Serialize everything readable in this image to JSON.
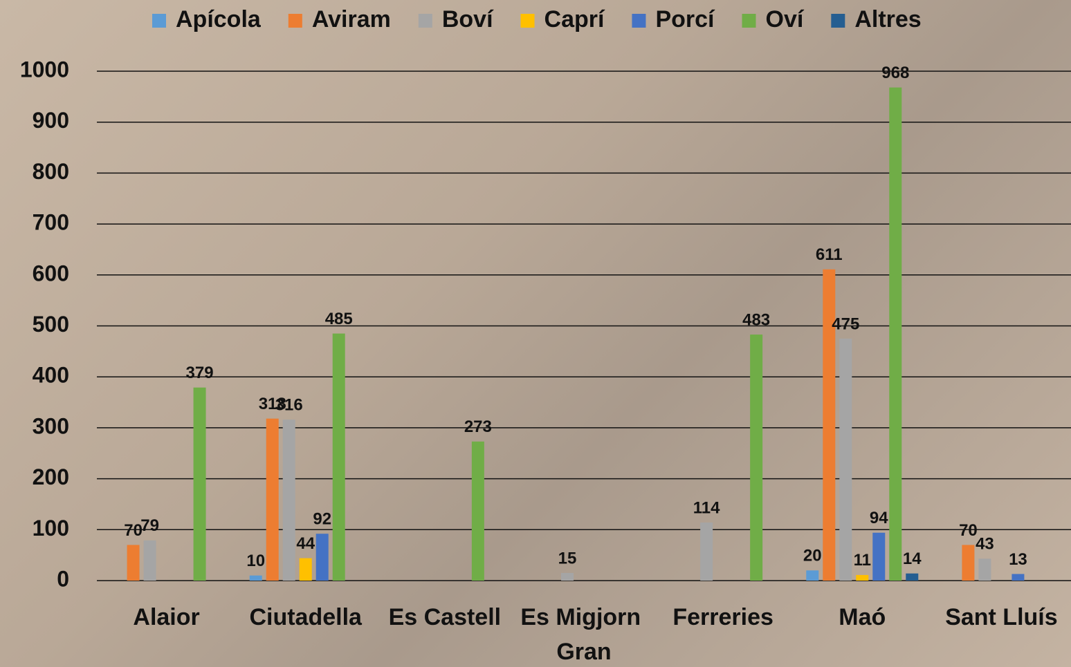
{
  "chart_data": {
    "type": "bar",
    "categories": [
      "Alaior",
      "Ciutadella",
      "Es Castell",
      "Es Migjorn Gran",
      "Ferreries",
      "Maó",
      "Sant Lluís"
    ],
    "series": [
      {
        "name": "Apícola",
        "color": "#5b9bd5",
        "values": [
          null,
          10,
          null,
          null,
          null,
          20,
          null
        ]
      },
      {
        "name": "Aviram",
        "color": "#ed7d31",
        "values": [
          70,
          318,
          null,
          null,
          null,
          611,
          70
        ]
      },
      {
        "name": "Boví",
        "color": "#a5a5a5",
        "values": [
          79,
          316,
          null,
          15,
          114,
          475,
          43
        ]
      },
      {
        "name": "Caprí",
        "color": "#ffc000",
        "values": [
          null,
          44,
          null,
          null,
          null,
          11,
          null
        ]
      },
      {
        "name": "Porcí",
        "color": "#4472c4",
        "values": [
          null,
          92,
          null,
          null,
          null,
          94,
          13
        ]
      },
      {
        "name": "Oví",
        "color": "#70ad47",
        "values": [
          379,
          485,
          273,
          null,
          483,
          968,
          null
        ]
      },
      {
        "name": "Altres",
        "color": "#255e91",
        "values": [
          null,
          null,
          null,
          null,
          null,
          14,
          null
        ]
      }
    ],
    "ylim": [
      0,
      1000
    ],
    "yticks": [
      0,
      100,
      200,
      300,
      400,
      500,
      600,
      700,
      800,
      900,
      1000
    ],
    "grid": true,
    "legend": "top"
  }
}
